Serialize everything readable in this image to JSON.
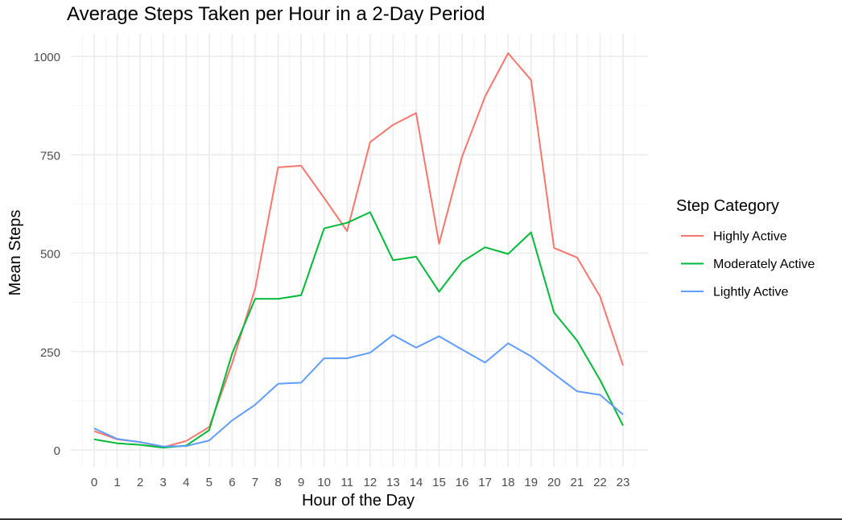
{
  "chart_data": {
    "type": "line",
    "title": "Average Steps Taken per Hour in a 2-Day Period",
    "xlabel": "Hour of the Day",
    "ylabel": "Mean Steps",
    "x": [
      0,
      1,
      2,
      3,
      4,
      5,
      6,
      7,
      8,
      9,
      10,
      11,
      12,
      13,
      14,
      15,
      16,
      17,
      18,
      19,
      20,
      21,
      22,
      23
    ],
    "xlim": [
      0,
      23
    ],
    "ylim": [
      0,
      1000
    ],
    "yticks": [
      0,
      250,
      500,
      750,
      1000
    ],
    "grid": true,
    "legend": {
      "title": "Step Category",
      "position": "right"
    },
    "series": [
      {
        "name": "Highly Active",
        "color": "#F8766D",
        "values": [
          48,
          27,
          20,
          7,
          23,
          58,
          220,
          410,
          718,
          722,
          640,
          556,
          782,
          826,
          856,
          524,
          745,
          898,
          1008,
          940,
          513,
          489,
          390,
          215
        ]
      },
      {
        "name": "Moderately Active",
        "color": "#00BA38",
        "values": [
          27,
          17,
          13,
          6,
          11,
          50,
          245,
          384,
          384,
          393,
          563,
          577,
          604,
          482,
          491,
          402,
          478,
          515,
          498,
          553,
          349,
          278,
          178,
          62
        ]
      },
      {
        "name": "Lightly Active",
        "color": "#619CFF",
        "values": [
          55,
          28,
          20,
          9,
          10,
          24,
          75,
          115,
          168,
          171,
          233,
          233,
          247,
          292,
          260,
          289,
          255,
          222,
          271,
          238,
          193,
          149,
          140,
          90
        ]
      }
    ]
  }
}
